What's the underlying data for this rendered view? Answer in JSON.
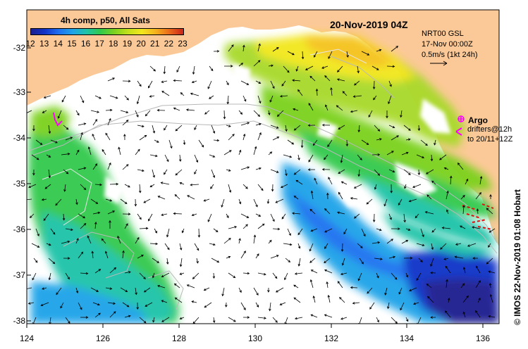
{
  "colorbar": {
    "title": "4h comp, p50, All Sats",
    "ticks": [
      "12",
      "13",
      "14",
      "15",
      "16",
      "17",
      "18",
      "19",
      "20",
      "21",
      "22",
      "23"
    ],
    "colors": [
      "#1b1f8f",
      "#1133c8",
      "#1e6ff0",
      "#1fa3e8",
      "#1fc3a8",
      "#30c94c",
      "#7bd11f",
      "#c2e01b",
      "#f2e71d",
      "#f5b21d",
      "#ea6a1b",
      "#c9231a"
    ]
  },
  "map": {
    "date": "20-Nov-2019 04Z",
    "product": "NRT00 GSL",
    "product_time": "17-Nov 00:00Z",
    "scale_label": "0.5m/s (1kt 24h)",
    "argo_label": "Argo",
    "drifters_line1": "drifters@12h",
    "drifters_line2": "to 20/11+12Z",
    "credit": "© IMOS 22-Nov-2019 01:08 Hobart",
    "land_color": "#fbc997",
    "argo_color": "#ff00ff",
    "drifter_color": "#e01010"
  },
  "axes": {
    "x_ticks": [
      "124",
      "126",
      "128",
      "130",
      "132",
      "134",
      "136"
    ],
    "y_ticks": [
      "-32",
      "-33",
      "-34",
      "-35",
      "-36",
      "-37",
      "-38"
    ],
    "x_range": [
      124,
      136.5
    ],
    "y_range": [
      -38.1,
      -31.4
    ]
  }
}
